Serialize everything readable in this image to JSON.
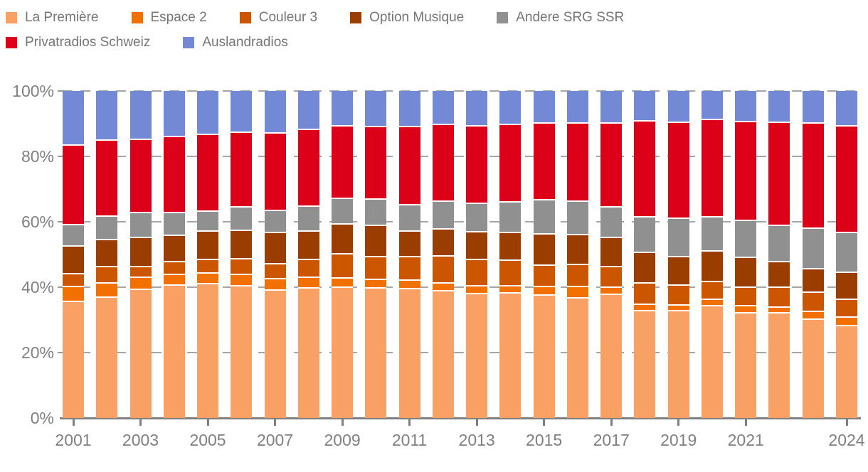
{
  "chart_data": {
    "type": "bar",
    "subtype": "stacked-100-percent",
    "title": "",
    "categories": [
      "2001",
      "2002",
      "2003",
      "2004",
      "2005",
      "2006",
      "2007",
      "2008",
      "2009",
      "2010",
      "2011",
      "2012",
      "2013",
      "2014",
      "2015",
      "2016",
      "2017",
      "2018",
      "2019",
      "2020",
      "2021",
      "2022",
      "2023",
      "2024"
    ],
    "series": [
      {
        "name": "La Première",
        "color": "#F9A065",
        "values": [
          35.5,
          36.7,
          39.1,
          40.4,
          40.8,
          40.2,
          39.0,
          39.5,
          39.7,
          39.5,
          39.3,
          38.8,
          37.8,
          38.1,
          37.3,
          36.6,
          37.7,
          32.6,
          32.7,
          34.1,
          32.0,
          31.9,
          29.9,
          28.0
        ]
      },
      {
        "name": "Espace 2",
        "color": "#F17000",
        "values": [
          4.5,
          4.4,
          3.7,
          3.3,
          3.3,
          3.5,
          3.4,
          3.3,
          2.9,
          2.7,
          2.7,
          2.2,
          2.4,
          2.1,
          2.6,
          3.4,
          2.0,
          2.0,
          1.7,
          1.9,
          2.1,
          1.9,
          2.5,
          2.6
        ]
      },
      {
        "name": "Couleur 3",
        "color": "#CC5500",
        "values": [
          4.0,
          4.9,
          3.4,
          3.9,
          4.1,
          4.7,
          4.5,
          5.4,
          7.5,
          6.9,
          7.2,
          8.3,
          8.0,
          7.8,
          6.6,
          6.8,
          6.5,
          6.4,
          6.0,
          5.5,
          5.6,
          5.9,
          5.8,
          5.4
        ]
      },
      {
        "name": "Option Musique",
        "color": "#993D00",
        "values": [
          8.3,
          8.4,
          8.7,
          8.0,
          8.7,
          8.7,
          9.7,
          8.7,
          9.1,
          9.6,
          7.7,
          8.4,
          8.5,
          8.6,
          9.7,
          9.0,
          8.9,
          9.5,
          8.7,
          9.3,
          9.2,
          8.0,
          7.3,
          8.4
        ]
      },
      {
        "name": "Andere SRG SSR",
        "color": "#909090",
        "values": [
          6.7,
          7.2,
          7.7,
          7.1,
          6.2,
          7.3,
          6.6,
          7.7,
          7.8,
          8.0,
          8.2,
          8.3,
          8.7,
          9.2,
          10.3,
          10.3,
          9.2,
          10.9,
          11.8,
          10.5,
          11.3,
          11.0,
          12.3,
          12.2
        ]
      },
      {
        "name": "Privatradios Schweiz",
        "color": "#DC0018",
        "values": [
          24.2,
          23.1,
          22.5,
          23.1,
          23.4,
          22.7,
          23.7,
          23.4,
          22.1,
          22.3,
          23.8,
          23.5,
          23.8,
          23.8,
          23.6,
          23.9,
          25.7,
          29.3,
          29.3,
          29.9,
          30.3,
          31.6,
          32.2,
          32.6
        ]
      },
      {
        "name": "Auslandradios",
        "color": "#7389D6",
        "values": [
          16.8,
          15.3,
          14.9,
          14.2,
          13.5,
          12.9,
          13.1,
          12.0,
          10.9,
          11.0,
          11.1,
          10.5,
          10.8,
          10.4,
          9.9,
          10.0,
          10.0,
          9.3,
          9.8,
          8.8,
          9.5,
          9.7,
          10.0,
          10.8
        ]
      }
    ],
    "stack_order_bottom_to_top": [
      "La Première",
      "Espace 2",
      "Couleur 3",
      "Option Musique",
      "Andere SRG SSR",
      "Privatradios Schweiz",
      "Auslandradios"
    ],
    "y_axis": {
      "min": 0,
      "max": 100,
      "ticks": [
        "0%",
        "20%",
        "40%",
        "60%",
        "80%",
        "100%"
      ],
      "grid": "dashed horizontal"
    },
    "x_axis": {
      "tick_labels": [
        "2001",
        "2003",
        "2005",
        "2007",
        "2009",
        "2011",
        "2013",
        "2015",
        "2017",
        "2019",
        "2021",
        "2024"
      ]
    },
    "legend_position": "top-left, two rows",
    "legend_rows": [
      [
        "La Première",
        "Espace 2",
        "Couleur 3",
        "Option Musique",
        "Andere SRG SSR"
      ],
      [
        "Privatradios Schweiz",
        "Auslandradios"
      ]
    ]
  },
  "styles": {
    "background": "#FFFFFF",
    "axis_color": "#808080",
    "grid_color": "#A6A6A6",
    "axis_label_color": "#808080",
    "legend_text_color": "#757575",
    "segment_separator_color": "#FFFFFF"
  }
}
